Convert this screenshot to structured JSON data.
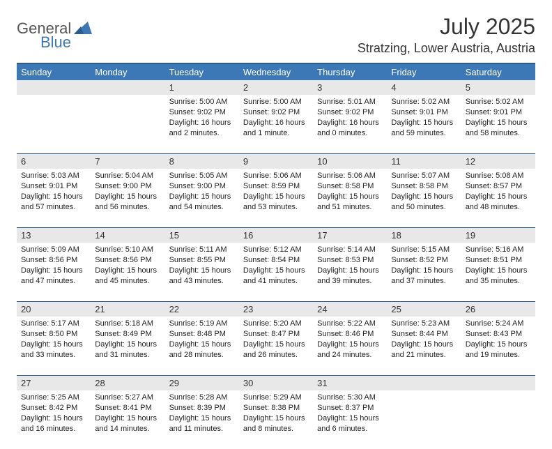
{
  "brand": {
    "part1": "General",
    "part2": "Blue"
  },
  "title": "July 2025",
  "location": "Stratzing, Lower Austria, Austria",
  "colors": {
    "header_bg": "#3b78b5",
    "header_border": "#2b5c8a",
    "daynum_bg": "#e8e8e8"
  },
  "daynames": [
    "Sunday",
    "Monday",
    "Tuesday",
    "Wednesday",
    "Thursday",
    "Friday",
    "Saturday"
  ],
  "weeks": [
    [
      null,
      null,
      {
        "n": "1",
        "sr": "5:00 AM",
        "ss": "9:02 PM",
        "dl": "16 hours and 2 minutes."
      },
      {
        "n": "2",
        "sr": "5:00 AM",
        "ss": "9:02 PM",
        "dl": "16 hours and 1 minute."
      },
      {
        "n": "3",
        "sr": "5:01 AM",
        "ss": "9:02 PM",
        "dl": "16 hours and 0 minutes."
      },
      {
        "n": "4",
        "sr": "5:02 AM",
        "ss": "9:01 PM",
        "dl": "15 hours and 59 minutes."
      },
      {
        "n": "5",
        "sr": "5:02 AM",
        "ss": "9:01 PM",
        "dl": "15 hours and 58 minutes."
      }
    ],
    [
      {
        "n": "6",
        "sr": "5:03 AM",
        "ss": "9:01 PM",
        "dl": "15 hours and 57 minutes."
      },
      {
        "n": "7",
        "sr": "5:04 AM",
        "ss": "9:00 PM",
        "dl": "15 hours and 56 minutes."
      },
      {
        "n": "8",
        "sr": "5:05 AM",
        "ss": "9:00 PM",
        "dl": "15 hours and 54 minutes."
      },
      {
        "n": "9",
        "sr": "5:06 AM",
        "ss": "8:59 PM",
        "dl": "15 hours and 53 minutes."
      },
      {
        "n": "10",
        "sr": "5:06 AM",
        "ss": "8:58 PM",
        "dl": "15 hours and 51 minutes."
      },
      {
        "n": "11",
        "sr": "5:07 AM",
        "ss": "8:58 PM",
        "dl": "15 hours and 50 minutes."
      },
      {
        "n": "12",
        "sr": "5:08 AM",
        "ss": "8:57 PM",
        "dl": "15 hours and 48 minutes."
      }
    ],
    [
      {
        "n": "13",
        "sr": "5:09 AM",
        "ss": "8:56 PM",
        "dl": "15 hours and 47 minutes."
      },
      {
        "n": "14",
        "sr": "5:10 AM",
        "ss": "8:56 PM",
        "dl": "15 hours and 45 minutes."
      },
      {
        "n": "15",
        "sr": "5:11 AM",
        "ss": "8:55 PM",
        "dl": "15 hours and 43 minutes."
      },
      {
        "n": "16",
        "sr": "5:12 AM",
        "ss": "8:54 PM",
        "dl": "15 hours and 41 minutes."
      },
      {
        "n": "17",
        "sr": "5:14 AM",
        "ss": "8:53 PM",
        "dl": "15 hours and 39 minutes."
      },
      {
        "n": "18",
        "sr": "5:15 AM",
        "ss": "8:52 PM",
        "dl": "15 hours and 37 minutes."
      },
      {
        "n": "19",
        "sr": "5:16 AM",
        "ss": "8:51 PM",
        "dl": "15 hours and 35 minutes."
      }
    ],
    [
      {
        "n": "20",
        "sr": "5:17 AM",
        "ss": "8:50 PM",
        "dl": "15 hours and 33 minutes."
      },
      {
        "n": "21",
        "sr": "5:18 AM",
        "ss": "8:49 PM",
        "dl": "15 hours and 31 minutes."
      },
      {
        "n": "22",
        "sr": "5:19 AM",
        "ss": "8:48 PM",
        "dl": "15 hours and 28 minutes."
      },
      {
        "n": "23",
        "sr": "5:20 AM",
        "ss": "8:47 PM",
        "dl": "15 hours and 26 minutes."
      },
      {
        "n": "24",
        "sr": "5:22 AM",
        "ss": "8:46 PM",
        "dl": "15 hours and 24 minutes."
      },
      {
        "n": "25",
        "sr": "5:23 AM",
        "ss": "8:44 PM",
        "dl": "15 hours and 21 minutes."
      },
      {
        "n": "26",
        "sr": "5:24 AM",
        "ss": "8:43 PM",
        "dl": "15 hours and 19 minutes."
      }
    ],
    [
      {
        "n": "27",
        "sr": "5:25 AM",
        "ss": "8:42 PM",
        "dl": "15 hours and 16 minutes."
      },
      {
        "n": "28",
        "sr": "5:27 AM",
        "ss": "8:41 PM",
        "dl": "15 hours and 14 minutes."
      },
      {
        "n": "29",
        "sr": "5:28 AM",
        "ss": "8:39 PM",
        "dl": "15 hours and 11 minutes."
      },
      {
        "n": "30",
        "sr": "5:29 AM",
        "ss": "8:38 PM",
        "dl": "15 hours and 8 minutes."
      },
      {
        "n": "31",
        "sr": "5:30 AM",
        "ss": "8:37 PM",
        "dl": "15 hours and 6 minutes."
      },
      null,
      null
    ]
  ],
  "labels": {
    "sunrise": "Sunrise:",
    "sunset": "Sunset:",
    "daylight": "Daylight:"
  }
}
